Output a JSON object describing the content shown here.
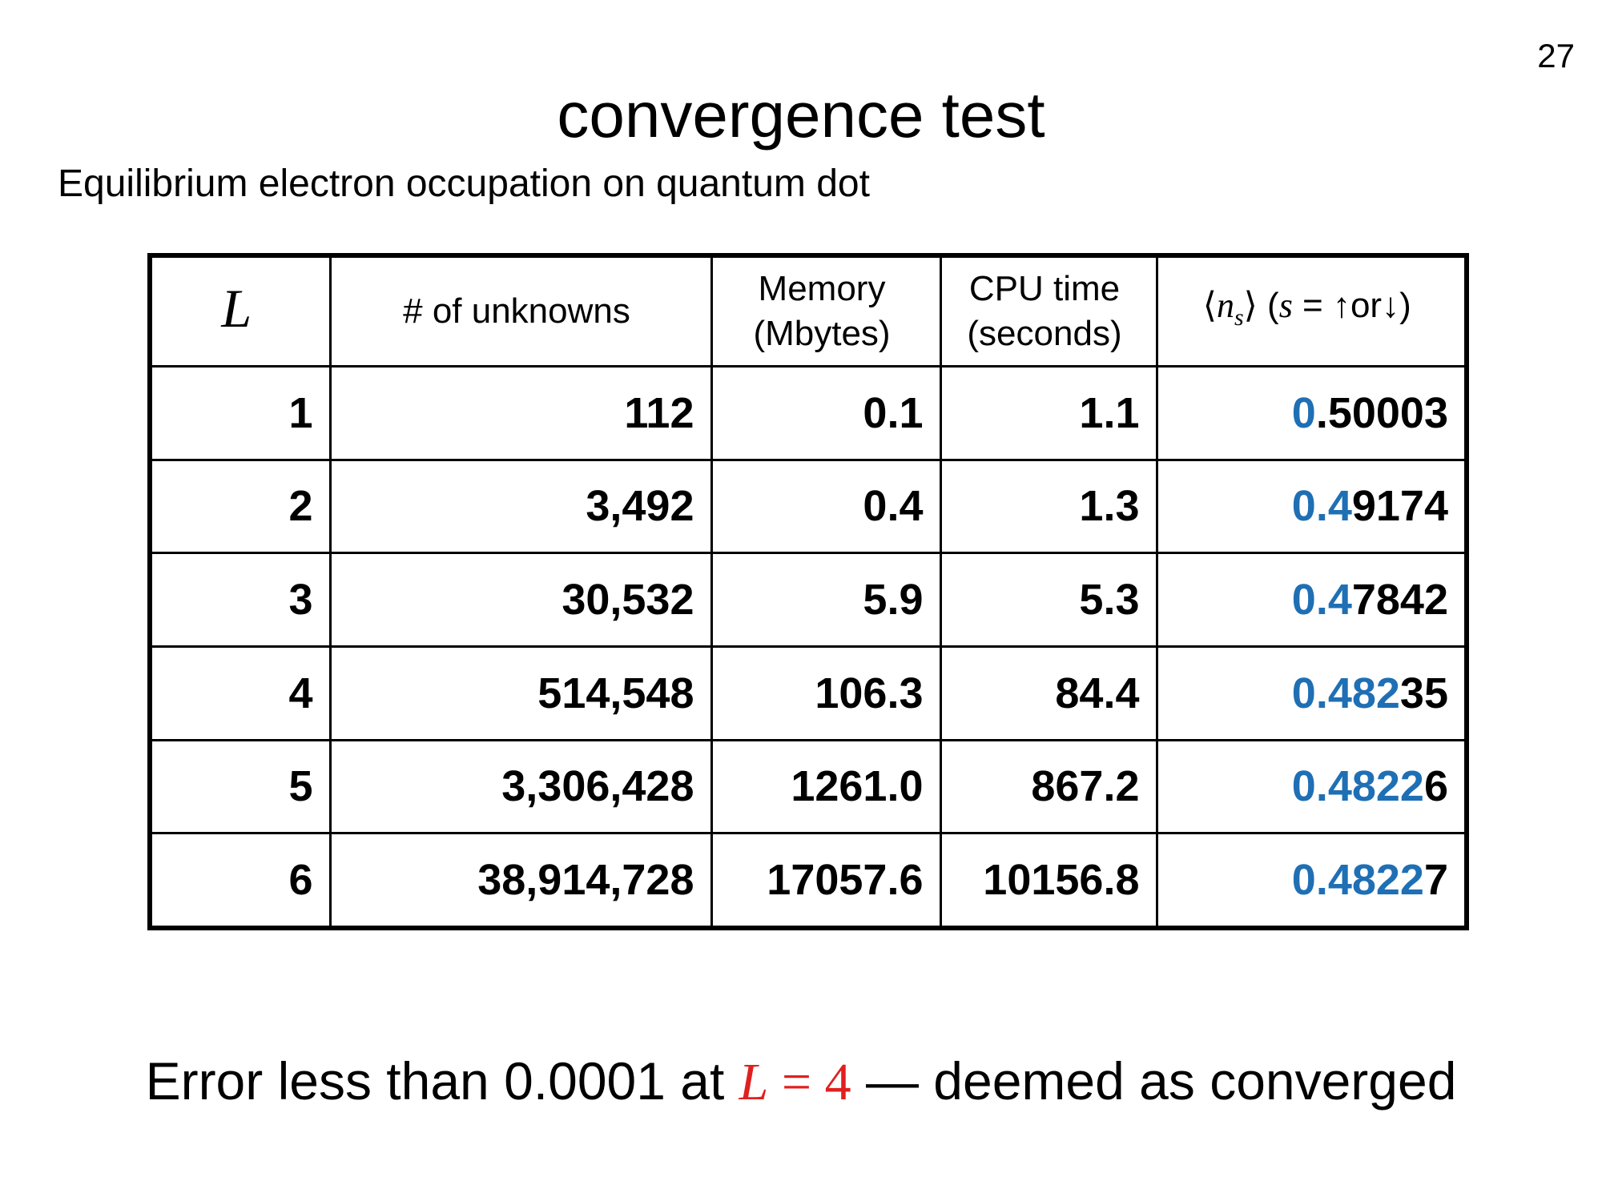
{
  "slide": {
    "page_number": "27",
    "title": "convergence test",
    "subtitle": "Equilibrium electron occupation on quantum dot"
  },
  "table": {
    "headers": {
      "L": "L",
      "unknowns": "# of unknowns",
      "memory_line1": "Memory",
      "memory_line2": "(Mbytes)",
      "cpu_line1": "CPU time",
      "cpu_line2": "(seconds)",
      "ns_open": "⟨",
      "ns_n": "n",
      "ns_sub": "s",
      "ns_close": "⟩",
      "ns_paren_open": " (",
      "ns_s": "s",
      "ns_rest": " = ↑or↓)"
    },
    "rows": [
      {
        "L": "1",
        "unknowns": "112",
        "memory": "0.1",
        "cpu": "1.1",
        "ns_blue": "0",
        "ns_black": ".50003"
      },
      {
        "L": "2",
        "unknowns": "3,492",
        "memory": "0.4",
        "cpu": "1.3",
        "ns_blue": "0.4",
        "ns_black": "9174"
      },
      {
        "L": "3",
        "unknowns": "30,532",
        "memory": "5.9",
        "cpu": "5.3",
        "ns_blue": "0.4",
        "ns_black": "7842"
      },
      {
        "L": "4",
        "unknowns": "514,548",
        "memory": "106.3",
        "cpu": "84.4",
        "ns_blue": "0.482",
        "ns_black": "35"
      },
      {
        "L": "5",
        "unknowns": "3,306,428",
        "memory": "1261.0",
        "cpu": "867.2",
        "ns_blue": "0.4822",
        "ns_black": "6"
      },
      {
        "L": "6",
        "unknowns": "38,914,728",
        "memory": "17057.6",
        "cpu": "10156.8",
        "ns_blue": "0.4822",
        "ns_black": "7"
      }
    ]
  },
  "conclusion": {
    "prefix": "Error less than 0.0001 at ",
    "math_L": "L",
    "math_eq": " = ",
    "math_val": "4",
    "suffix": " — deemed as converged"
  },
  "colors": {
    "highlight_blue": "#1f6fb4",
    "highlight_red": "#e02020"
  }
}
